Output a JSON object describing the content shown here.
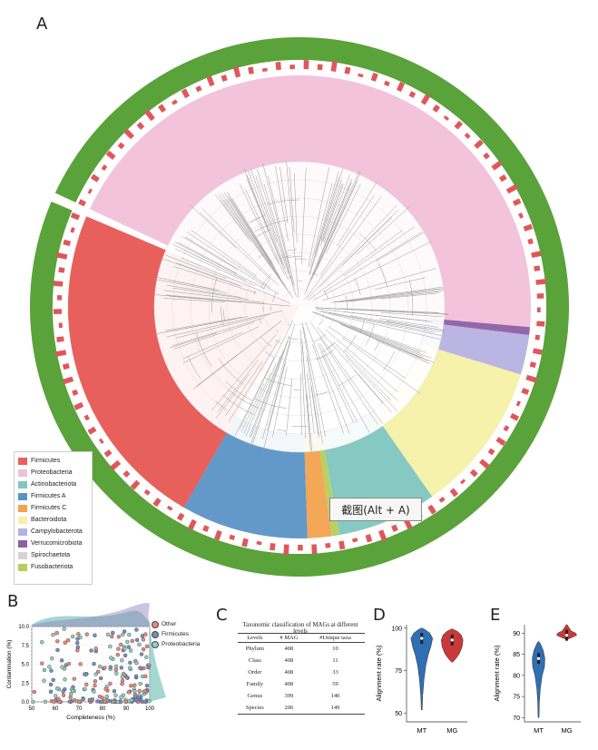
{
  "panels": {
    "a": "A",
    "b": "B",
    "c": "C",
    "d": "D",
    "e": "E"
  },
  "tooltip": {
    "text": "截图(Alt + A)"
  },
  "legend_a": [
    {
      "label": "Firmicutes",
      "color": "#e8605c"
    },
    {
      "label": "Proteobacteria",
      "color": "#f2bfd9"
    },
    {
      "label": "Actinobacteriota",
      "color": "#7fc6bf"
    },
    {
      "label": "Firmicutes A",
      "color": "#5b93c6"
    },
    {
      "label": "Firmicutes C",
      "color": "#f2a24e"
    },
    {
      "label": "Bacteroidota",
      "color": "#f6f0a6"
    },
    {
      "label": "Campylobacterota",
      "color": "#b6b1e0"
    },
    {
      "label": "Verrucomicrobiota",
      "color": "#8e5fa6"
    },
    {
      "label": "Spirochaetota",
      "color": "#d8d2d6"
    },
    {
      "label": "Fusobacteriota",
      "color": "#b4cf5a"
    }
  ],
  "tree": {
    "clades": [
      {
        "name": "Proteobacteria",
        "start": 205,
        "end": 365,
        "color": "#f2bfd9"
      },
      {
        "name": "Verrucomicrobiota",
        "start": 5,
        "end": 7,
        "color": "#8e5fa6"
      },
      {
        "name": "Campylobacterota",
        "start": 7,
        "end": 17,
        "color": "#b6b1e0"
      },
      {
        "name": "Bacteroidota",
        "start": 17,
        "end": 55,
        "color": "#f6f0a6"
      },
      {
        "name": "Actinobacteriota",
        "start": 55,
        "end": 80,
        "color": "#7fc6bf"
      },
      {
        "name": "Fusobacteriota",
        "start": 80,
        "end": 82,
        "color": "#b4cf5a"
      },
      {
        "name": "Firmicutes C",
        "start": 82,
        "end": 88,
        "color": "#f2a24e"
      },
      {
        "name": "Firmicutes A",
        "start": 88,
        "end": 120,
        "color": "#5b93c6"
      },
      {
        "name": "Firmicutes",
        "start": 120,
        "end": 203,
        "color": "#e8605c"
      }
    ]
  },
  "panel_b": {
    "legend": [
      {
        "label": "Other",
        "color": "#e88a7a"
      },
      {
        "label": "Firmicutes",
        "color": "#7a8cc4"
      },
      {
        "label": "Proteobacteria",
        "color": "#8fd0c4"
      }
    ],
    "chart_data": {
      "type": "scatter",
      "xlabel": "Completeness (%)",
      "ylabel": "Contamination (%)",
      "xlim": [
        50,
        100
      ],
      "ylim": [
        0,
        10
      ],
      "xticks": [
        "50",
        "60",
        "70",
        "80",
        "90",
        "100"
      ],
      "yticks": [
        "0.0",
        "2.5",
        "5.0",
        "7.5",
        "10.0"
      ]
    }
  },
  "panel_c": {
    "caption": "Taxonomic classification of MAGs at different levels",
    "headers": [
      "Levels",
      "# MAG",
      "#Unique taxa"
    ],
    "rows": [
      [
        "Phylum",
        "408",
        "10"
      ],
      [
        "Class",
        "408",
        "11"
      ],
      [
        "Order",
        "408",
        "33"
      ],
      [
        "Family",
        "408",
        "59"
      ],
      [
        "Genus",
        "399",
        "140"
      ],
      [
        "Species",
        "206",
        "149"
      ]
    ]
  },
  "panel_d": {
    "chart_data": {
      "type": "violin",
      "ylabel": "Alignment rate (%)",
      "categories": [
        "MT",
        "MG"
      ],
      "yticks": [
        "50",
        "75",
        "100"
      ],
      "ylim": [
        45,
        102
      ],
      "colors": [
        "#2f6fb3",
        "#c8393a"
      ]
    }
  },
  "panel_e": {
    "chart_data": {
      "type": "violin",
      "ylabel": "Alignment rate (%)",
      "categories": [
        "MT",
        "MG"
      ],
      "yticks": [
        "70",
        "75",
        "80",
        "85",
        "90"
      ],
      "ylim": [
        69,
        92
      ],
      "colors": [
        "#2f6fb3",
        "#c8393a"
      ]
    }
  }
}
